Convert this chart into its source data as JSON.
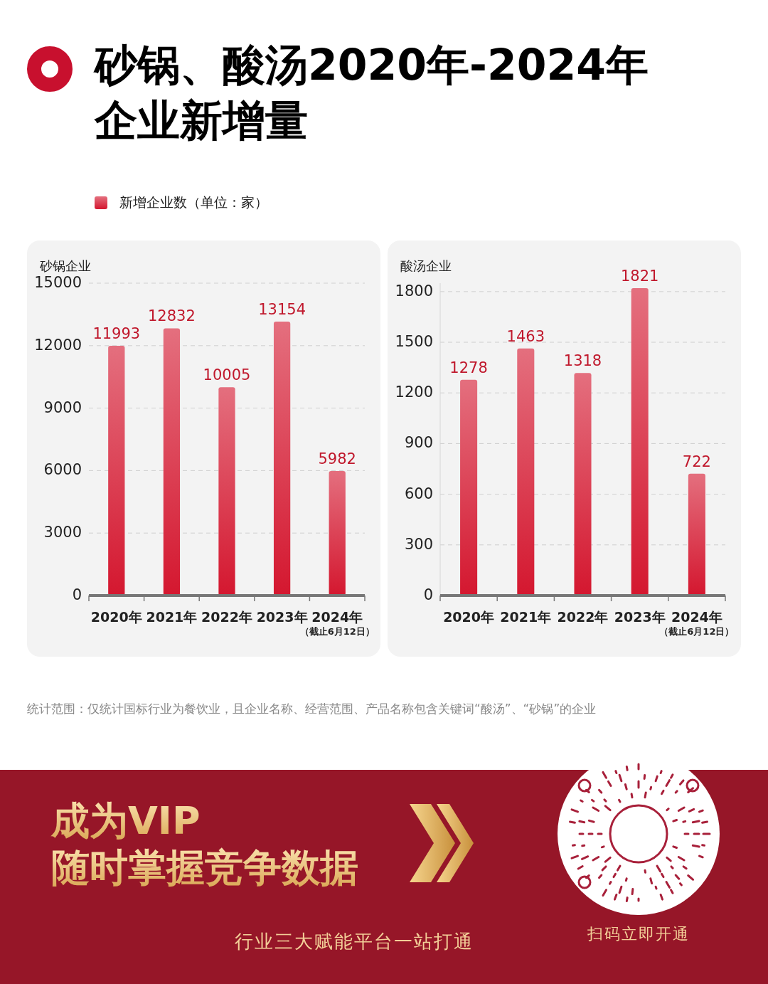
{
  "chart_data": [
    {
      "type": "bar",
      "title": "砂锅、酸汤2020年-2024年企业新增量",
      "ylabel": "砂锅企业",
      "categories": [
        "2020年",
        "2021年",
        "2022年",
        "2023年",
        "2024年"
      ],
      "series": [
        {
          "name": "新增企业数（单位：家）",
          "color": "#d4172f",
          "values": [
            11993,
            12832,
            10005,
            13154,
            5982
          ]
        }
      ],
      "ylim": [
        0,
        15000
      ],
      "yticks": [
        0,
        3000,
        6000,
        9000,
        12000,
        15000
      ],
      "grid": "y",
      "legend": "top",
      "data_labels": true,
      "annotations": [
        "（截止6月12日）",
        "统计范围：仅统计国标行业为餐饮业，且企业名称、经营范围、产品名称包含关键词“酸汤”、“砂锅”的企业",
        "成为VIP",
        "随时掌握竞争数据",
        "行业三大赋能平台一站打通",
        "扫码立即开通"
      ]
    },
    {
      "type": "bar",
      "ylabel": "酸汤企业",
      "categories": [
        "2020年",
        "2021年",
        "2022年",
        "2023年",
        "2024年"
      ],
      "series": [
        {
          "color": "#d4172f",
          "values": [
            1278,
            1463,
            1318,
            1821,
            722
          ]
        }
      ],
      "ylim": [
        0,
        1850
      ],
      "yticks": [
        0,
        300,
        600,
        900,
        1200,
        1500,
        1800
      ],
      "grid": "y",
      "data_labels": true,
      "annotations": [
        "（截止6月12日）"
      ]
    }
  ]
}
